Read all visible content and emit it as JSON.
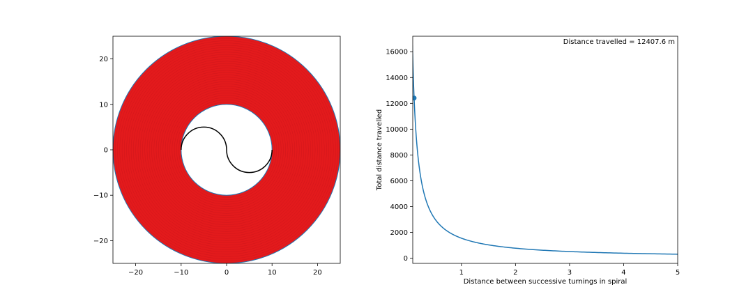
{
  "figure": {
    "background": "#ffffff"
  },
  "chart_data": [
    {
      "type": "line",
      "title": "",
      "xlabel": "",
      "ylabel": "",
      "xlim": [
        -25,
        25
      ],
      "ylim": [
        -25,
        25
      ],
      "xticks": [
        -20,
        -10,
        0,
        10,
        20
      ],
      "yticks": [
        -20,
        -10,
        0,
        10,
        20
      ],
      "xtick_labels": [
        "−20",
        "−10",
        "0",
        "10",
        "20"
      ],
      "ytick_labels": [
        "−20",
        "−10",
        "0",
        "10",
        "20"
      ],
      "grid": false,
      "series": [
        {
          "kind": "spiral",
          "color": "#e31a1c",
          "inner_radius": 10,
          "outer_radius": 25,
          "turn_spacing": 0.125
        },
        {
          "kind": "s-curve",
          "color": "#000000",
          "points": [
            [
              -10,
              0
            ],
            [
              -5,
              5
            ],
            [
              0,
              0
            ],
            [
              5,
              -5
            ],
            [
              10,
              0
            ]
          ]
        }
      ],
      "outline_color": "#1f77b4"
    },
    {
      "type": "line",
      "title": "",
      "xlabel": "Distance between successive turnings in spiral",
      "ylabel": "Total distance travelled",
      "xlim": [
        0.1,
        5
      ],
      "ylim": [
        -400,
        17200
      ],
      "xticks": [
        1,
        2,
        3,
        4,
        5
      ],
      "yticks": [
        0,
        2000,
        4000,
        6000,
        8000,
        10000,
        12000,
        14000,
        16000
      ],
      "xtick_labels": [
        "1",
        "2",
        "3",
        "4",
        "5"
      ],
      "ytick_labels": [
        "0",
        "2000",
        "4000",
        "6000",
        "8000",
        "10000",
        "12000",
        "14000",
        "16000"
      ],
      "grid": false,
      "series": [
        {
          "kind": "curve",
          "color": "#1f77b4",
          "formula": "y = 1551 / x",
          "x_range": [
            0.094,
            5
          ]
        }
      ],
      "marker": {
        "x": 0.125,
        "y": 12407.6,
        "color": "#1f77b4"
      },
      "annotation": "Distance travelled = 12407.6 m"
    }
  ]
}
